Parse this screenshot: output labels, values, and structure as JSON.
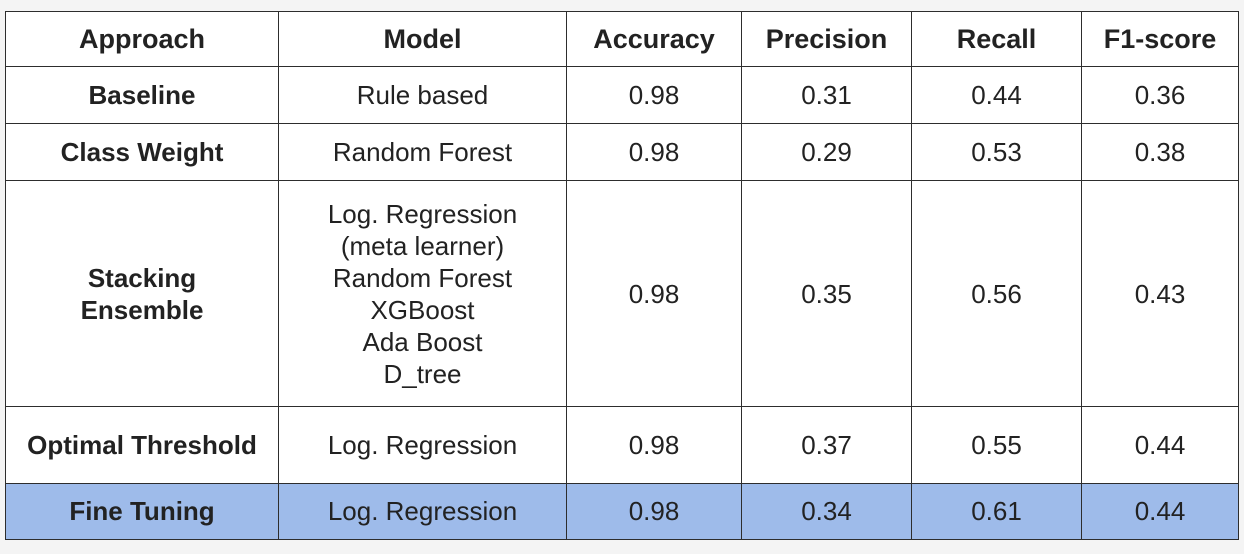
{
  "chart_data": {
    "type": "table",
    "columns": [
      "Approach",
      "Model",
      "Accuracy",
      "Precision",
      "Recall",
      "F1-score"
    ],
    "rows": [
      {
        "approach": "Baseline",
        "model": [
          "Rule based"
        ],
        "accuracy": "0.98",
        "precision": "0.31",
        "recall": "0.44",
        "f1": "0.36"
      },
      {
        "approach": "Class Weight",
        "model": [
          "Random Forest"
        ],
        "accuracy": "0.98",
        "precision": "0.29",
        "recall": "0.53",
        "f1": "0.38"
      },
      {
        "approach": "Stacking Ensemble",
        "model": [
          "Log. Regression",
          "(meta learner)",
          "Random Forest",
          "XGBoost",
          "Ada Boost",
          "D_tree"
        ],
        "accuracy": "0.98",
        "precision": "0.35",
        "recall": "0.56",
        "f1": "0.43"
      },
      {
        "approach": "Optimal Threshold",
        "model": [
          "Log. Regression"
        ],
        "accuracy": "0.98",
        "precision": "0.37",
        "recall": "0.55",
        "f1": "0.44"
      },
      {
        "approach": "Fine Tuning",
        "model": [
          "Log. Regression"
        ],
        "accuracy": "0.98",
        "precision": "0.34",
        "recall": "0.61",
        "f1": "0.44",
        "highlighted": true
      }
    ],
    "highlight_color": "#9ebbea"
  }
}
